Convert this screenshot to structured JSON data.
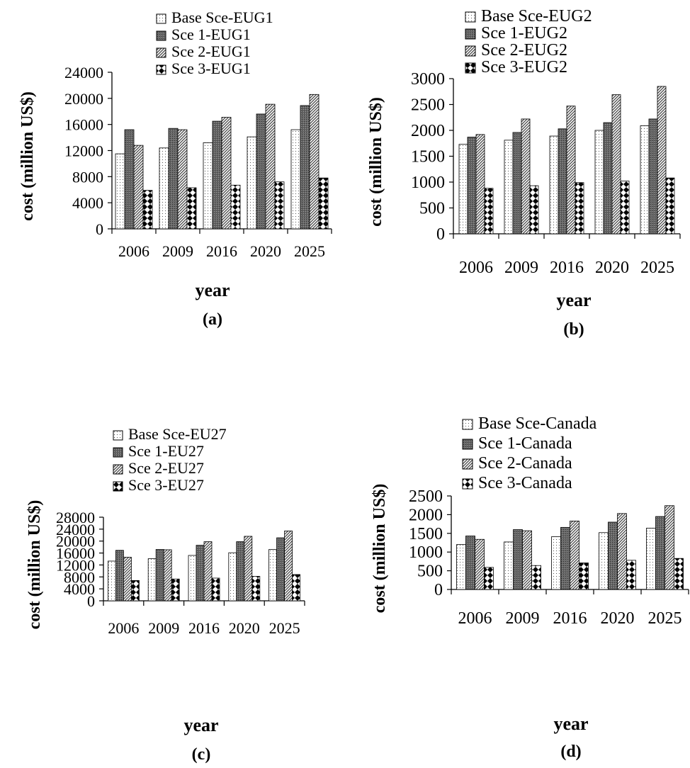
{
  "chart_data": [
    {
      "type": "bar",
      "panel_label": "(a)",
      "categories": [
        "2006",
        "2009",
        "2016",
        "2020",
        "2025"
      ],
      "series": [
        {
          "name": "Base Sce-EUG1",
          "values": [
            11500,
            12400,
            13200,
            14100,
            15200
          ]
        },
        {
          "name": "Sce 1-EUG1",
          "values": [
            15200,
            15400,
            16500,
            17600,
            18900
          ]
        },
        {
          "name": "Sce 2-EUG1",
          "values": [
            12800,
            15200,
            17100,
            19100,
            20600
          ]
        },
        {
          "name": "Sce 3-EUG1",
          "values": [
            5900,
            6300,
            6700,
            7200,
            7800
          ]
        }
      ],
      "yticks": [
        "0",
        "4000",
        "8000",
        "12000",
        "16000",
        "20000",
        "24000"
      ],
      "ylim": [
        0,
        24000
      ],
      "xlabel": "year",
      "ylabel": "cost (million US$)",
      "legend_position": "top"
    },
    {
      "type": "bar",
      "panel_label": "(b)",
      "categories": [
        "2006",
        "2009",
        "2016",
        "2020",
        "2025"
      ],
      "series": [
        {
          "name": "Base Sce-EUG2",
          "values": [
            1730,
            1810,
            1890,
            2000,
            2090
          ]
        },
        {
          "name": "Sce 1-EUG2",
          "values": [
            1870,
            1960,
            2030,
            2150,
            2220
          ]
        },
        {
          "name": "Sce 2-EUG2",
          "values": [
            1920,
            2220,
            2470,
            2690,
            2850
          ]
        },
        {
          "name": "Sce 3-EUG2",
          "values": [
            880,
            930,
            990,
            1020,
            1080
          ]
        }
      ],
      "yticks": [
        "0",
        "500",
        "1000",
        "1500",
        "2000",
        "2500",
        "3000"
      ],
      "ylim": [
        0,
        3000
      ],
      "xlabel": "year",
      "ylabel": "cost (million US$)",
      "legend_position": "top"
    },
    {
      "type": "bar",
      "panel_label": "(c)",
      "categories": [
        "2006",
        "2009",
        "2016",
        "2020",
        "2025"
      ],
      "series": [
        {
          "name": "Base Sce-EU27",
          "values": [
            13300,
            14100,
            15200,
            16100,
            17200
          ]
        },
        {
          "name": "Sce 1-EU27",
          "values": [
            16900,
            17200,
            18600,
            19800,
            21100
          ]
        },
        {
          "name": "Sce 2-EU27",
          "values": [
            14600,
            17100,
            19800,
            21600,
            23400
          ]
        },
        {
          "name": "Sce 3-EU27",
          "values": [
            6800,
            7300,
            7600,
            8200,
            8800
          ]
        }
      ],
      "yticks": [
        "0",
        "4000",
        "8000",
        "12000",
        "16000",
        "20000",
        "24000",
        "28000"
      ],
      "ylim": [
        0,
        28000
      ],
      "xlabel": "year",
      "ylabel": "cost (million US$)",
      "legend_position": "top"
    },
    {
      "type": "bar",
      "panel_label": "(d)",
      "categories": [
        "2006",
        "2009",
        "2016",
        "2020",
        "2025"
      ],
      "series": [
        {
          "name": "Base Sce-Canada",
          "values": [
            1200,
            1270,
            1410,
            1520,
            1640
          ]
        },
        {
          "name": "Sce 1-Canada",
          "values": [
            1430,
            1600,
            1660,
            1800,
            1950
          ]
        },
        {
          "name": "Sce 2-Canada",
          "values": [
            1340,
            1570,
            1830,
            2030,
            2240
          ]
        },
        {
          "name": "Sce 3-Canada",
          "values": [
            590,
            640,
            710,
            780,
            830
          ]
        }
      ],
      "yticks": [
        "0",
        "500",
        "1000",
        "1500",
        "2000",
        "2500"
      ],
      "ylim": [
        0,
        2500
      ],
      "xlabel": "year",
      "ylabel": "cost (million US$)",
      "legend_position": "top"
    }
  ]
}
